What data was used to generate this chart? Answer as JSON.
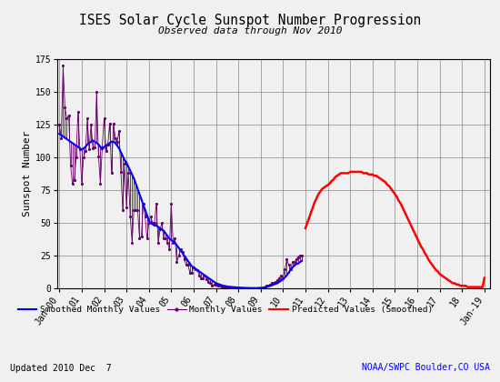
{
  "title": "ISES Solar Cycle Sunspot Number Progression",
  "subtitle": "Observed data through Nov 2010",
  "ylabel": "Sunspot Number",
  "footer_left": "Updated 2010 Dec  7",
  "footer_right": "NOAA/SWPC Boulder,CO USA",
  "ylim": [
    0,
    175
  ],
  "yticks": [
    0,
    25,
    50,
    75,
    100,
    125,
    150,
    175
  ],
  "background_color": "#f0f0f0",
  "grid_color": "#888888",
  "smoothed_color": "#0000ff",
  "monthly_color": "#660066",
  "predicted_color": "#ff0000",
  "x_start_year": 1999.917,
  "x_end_year": 2019.25,
  "xtick_years": [
    2000,
    2001,
    2002,
    2003,
    2004,
    2005,
    2006,
    2007,
    2008,
    2009,
    2010,
    2011,
    2012,
    2013,
    2014,
    2015,
    2016,
    2017,
    2018,
    2019
  ],
  "xtick_labels": [
    "Jan-00",
    "01",
    "02",
    "03",
    "04",
    "05",
    "06",
    "07",
    "08",
    "09",
    "10",
    "11",
    "12",
    "13",
    "14",
    "15",
    "16",
    "17",
    "18",
    "Jan-19"
  ],
  "smoothed_x": [
    2000.0,
    2000.083,
    2000.167,
    2000.25,
    2000.333,
    2000.417,
    2000.5,
    2000.583,
    2000.667,
    2000.75,
    2000.833,
    2000.917,
    2001.0,
    2001.083,
    2001.167,
    2001.25,
    2001.333,
    2001.417,
    2001.5,
    2001.583,
    2001.667,
    2001.75,
    2001.833,
    2001.917,
    2002.0,
    2002.083,
    2002.167,
    2002.25,
    2002.333,
    2002.417,
    2002.5,
    2002.583,
    2002.667,
    2002.75,
    2002.833,
    2002.917,
    2003.0,
    2003.083,
    2003.167,
    2003.25,
    2003.333,
    2003.417,
    2003.5,
    2003.583,
    2003.667,
    2003.75,
    2003.833,
    2003.917,
    2004.0,
    2004.083,
    2004.167,
    2004.25,
    2004.333,
    2004.417,
    2004.5,
    2004.583,
    2004.667,
    2004.75,
    2004.833,
    2004.917,
    2005.0,
    2005.083,
    2005.167,
    2005.25,
    2005.333,
    2005.417,
    2005.5,
    2005.583,
    2005.667,
    2005.75,
    2005.833,
    2005.917,
    2006.0,
    2006.083,
    2006.167,
    2006.25,
    2006.333,
    2006.417,
    2006.5,
    2006.583,
    2006.667,
    2006.75,
    2006.833,
    2006.917,
    2007.0,
    2007.083,
    2007.167,
    2007.25,
    2007.333,
    2007.417,
    2007.5,
    2007.583,
    2007.667,
    2007.75,
    2007.833,
    2007.917,
    2008.0,
    2008.083,
    2008.167,
    2008.25,
    2008.333,
    2008.417,
    2008.5,
    2008.583,
    2008.667,
    2008.75,
    2008.833,
    2008.917,
    2009.0,
    2009.083,
    2009.167,
    2009.25,
    2009.333,
    2009.417,
    2009.5,
    2009.583,
    2009.667,
    2009.75,
    2009.833,
    2009.917,
    2010.0,
    2010.083,
    2010.167,
    2010.25,
    2010.333,
    2010.417,
    2010.5,
    2010.583,
    2010.667,
    2010.75,
    2010.833
  ],
  "smoothed_y": [
    118,
    117,
    116,
    115,
    114,
    113,
    112,
    111,
    110,
    109,
    108,
    107,
    106,
    107,
    108,
    110,
    111,
    112,
    113,
    112,
    111,
    110,
    108,
    106,
    108,
    109,
    110,
    111,
    112,
    112,
    111,
    109,
    107,
    104,
    101,
    98,
    96,
    93,
    90,
    87,
    84,
    80,
    76,
    72,
    68,
    64,
    60,
    56,
    52,
    50,
    49,
    48,
    48,
    47,
    46,
    45,
    44,
    42,
    40,
    38,
    37,
    36,
    35,
    33,
    31,
    29,
    27,
    25,
    23,
    21,
    19,
    17,
    16,
    15,
    14,
    13,
    12,
    11,
    10,
    9,
    8,
    7,
    6,
    5,
    4,
    3.5,
    3,
    2.5,
    2,
    1.8,
    1.5,
    1.3,
    1.2,
    1.0,
    0.9,
    0.8,
    0.7,
    0.6,
    0.5,
    0.5,
    0.4,
    0.4,
    0.3,
    0.3,
    0.3,
    0.3,
    0.3,
    0.4,
    0.5,
    0.6,
    0.8,
    1.0,
    1.5,
    2.0,
    2.5,
    3.0,
    3.5,
    4.0,
    5.0,
    6.0,
    7.0,
    8.5,
    10.0,
    12.0,
    14.0,
    16.0,
    17.5,
    18.5,
    19.0,
    20.0,
    21.0
  ],
  "monthly_x": [
    2000.0,
    2000.083,
    2000.167,
    2000.25,
    2000.333,
    2000.417,
    2000.5,
    2000.583,
    2000.667,
    2000.75,
    2000.833,
    2000.917,
    2001.0,
    2001.083,
    2001.167,
    2001.25,
    2001.333,
    2001.417,
    2001.5,
    2001.583,
    2001.667,
    2001.75,
    2001.833,
    2001.917,
    2002.0,
    2002.083,
    2002.167,
    2002.25,
    2002.333,
    2002.417,
    2002.5,
    2002.583,
    2002.667,
    2002.75,
    2002.833,
    2002.917,
    2003.0,
    2003.083,
    2003.167,
    2003.25,
    2003.333,
    2003.417,
    2003.5,
    2003.583,
    2003.667,
    2003.75,
    2003.833,
    2003.917,
    2004.0,
    2004.083,
    2004.167,
    2004.25,
    2004.333,
    2004.417,
    2004.5,
    2004.583,
    2004.667,
    2004.75,
    2004.833,
    2004.917,
    2005.0,
    2005.083,
    2005.167,
    2005.25,
    2005.333,
    2005.417,
    2005.5,
    2005.583,
    2005.667,
    2005.75,
    2005.833,
    2005.917,
    2006.0,
    2006.083,
    2006.167,
    2006.25,
    2006.333,
    2006.417,
    2006.5,
    2006.583,
    2006.667,
    2006.75,
    2006.833,
    2006.917,
    2007.0,
    2007.083,
    2007.167,
    2007.25,
    2007.333,
    2007.417,
    2007.5,
    2007.583,
    2007.667,
    2007.75,
    2007.833,
    2007.917,
    2008.0,
    2008.083,
    2008.167,
    2008.25,
    2008.333,
    2008.417,
    2008.5,
    2008.583,
    2008.667,
    2008.75,
    2008.833,
    2008.917,
    2009.0,
    2009.083,
    2009.167,
    2009.25,
    2009.333,
    2009.417,
    2009.5,
    2009.583,
    2009.667,
    2009.75,
    2009.833,
    2009.917,
    2010.0,
    2010.083,
    2010.167,
    2010.25,
    2010.333,
    2010.417,
    2010.5,
    2010.583,
    2010.667,
    2010.75,
    2010.833
  ],
  "monthly_y": [
    125,
    115,
    170,
    138,
    130,
    132,
    94,
    80,
    83,
    100,
    135,
    106,
    80,
    100,
    105,
    130,
    106,
    125,
    107,
    108,
    150,
    101,
    80,
    108,
    130,
    105,
    110,
    126,
    88,
    126,
    115,
    112,
    120,
    89,
    60,
    95,
    62,
    88,
    55,
    35,
    60,
    60,
    60,
    38,
    40,
    65,
    55,
    38,
    50,
    55,
    50,
    50,
    65,
    35,
    45,
    50,
    38,
    38,
    35,
    30,
    65,
    35,
    38,
    20,
    25,
    30,
    28,
    22,
    18,
    18,
    12,
    12,
    16,
    15,
    14,
    10,
    8,
    8,
    10,
    7,
    5,
    4,
    2,
    3,
    3,
    2,
    2,
    1,
    1,
    1,
    1,
    0,
    1,
    1,
    1,
    0,
    0,
    0,
    0,
    0,
    0,
    0,
    0,
    0,
    0,
    0,
    0,
    0,
    0,
    0,
    1,
    2,
    2,
    3,
    4,
    4,
    5,
    6,
    8,
    10,
    8,
    15,
    22,
    18,
    15,
    20,
    20,
    22,
    24,
    25,
    25
  ],
  "predicted_x": [
    2011.0,
    2011.083,
    2011.167,
    2011.25,
    2011.333,
    2011.417,
    2011.5,
    2011.583,
    2011.667,
    2011.75,
    2011.833,
    2011.917,
    2012.0,
    2012.083,
    2012.167,
    2012.25,
    2012.333,
    2012.417,
    2012.5,
    2012.583,
    2012.667,
    2012.75,
    2012.833,
    2012.917,
    2013.0,
    2013.083,
    2013.167,
    2013.25,
    2013.333,
    2013.417,
    2013.5,
    2013.583,
    2013.667,
    2013.75,
    2013.833,
    2013.917,
    2014.0,
    2014.083,
    2014.167,
    2014.25,
    2014.333,
    2014.417,
    2014.5,
    2014.583,
    2014.667,
    2014.75,
    2014.833,
    2014.917,
    2015.0,
    2015.083,
    2015.167,
    2015.25,
    2015.333,
    2015.417,
    2015.5,
    2015.583,
    2015.667,
    2015.75,
    2015.833,
    2015.917,
    2016.0,
    2016.083,
    2016.167,
    2016.25,
    2016.333,
    2016.417,
    2016.5,
    2016.583,
    2016.667,
    2016.75,
    2016.833,
    2016.917,
    2017.0,
    2017.083,
    2017.167,
    2017.25,
    2017.333,
    2017.417,
    2017.5,
    2017.583,
    2017.667,
    2017.75,
    2017.833,
    2017.917,
    2018.0,
    2018.083,
    2018.167,
    2018.25,
    2018.333,
    2018.417,
    2018.5,
    2018.583,
    2018.667,
    2018.75,
    2018.833,
    2018.917,
    2019.0
  ],
  "predicted_y": [
    46,
    50,
    54,
    58,
    62,
    66,
    69,
    72,
    74,
    76,
    77,
    78,
    79,
    80,
    82,
    83,
    85,
    86,
    87,
    88,
    88,
    88,
    88,
    88,
    89,
    89,
    89,
    89,
    89,
    89,
    89,
    88,
    88,
    88,
    87,
    87,
    87,
    86,
    86,
    85,
    84,
    83,
    82,
    81,
    79,
    78,
    76,
    74,
    72,
    70,
    67,
    65,
    62,
    59,
    56,
    53,
    50,
    47,
    44,
    41,
    38,
    35,
    32,
    30,
    27,
    25,
    22,
    20,
    18,
    16,
    14,
    13,
    11,
    10,
    9,
    8,
    7,
    6,
    5,
    4,
    4,
    3,
    3,
    2,
    2,
    2,
    2,
    1,
    1,
    1,
    1,
    1,
    1,
    1,
    1,
    1,
    8
  ]
}
